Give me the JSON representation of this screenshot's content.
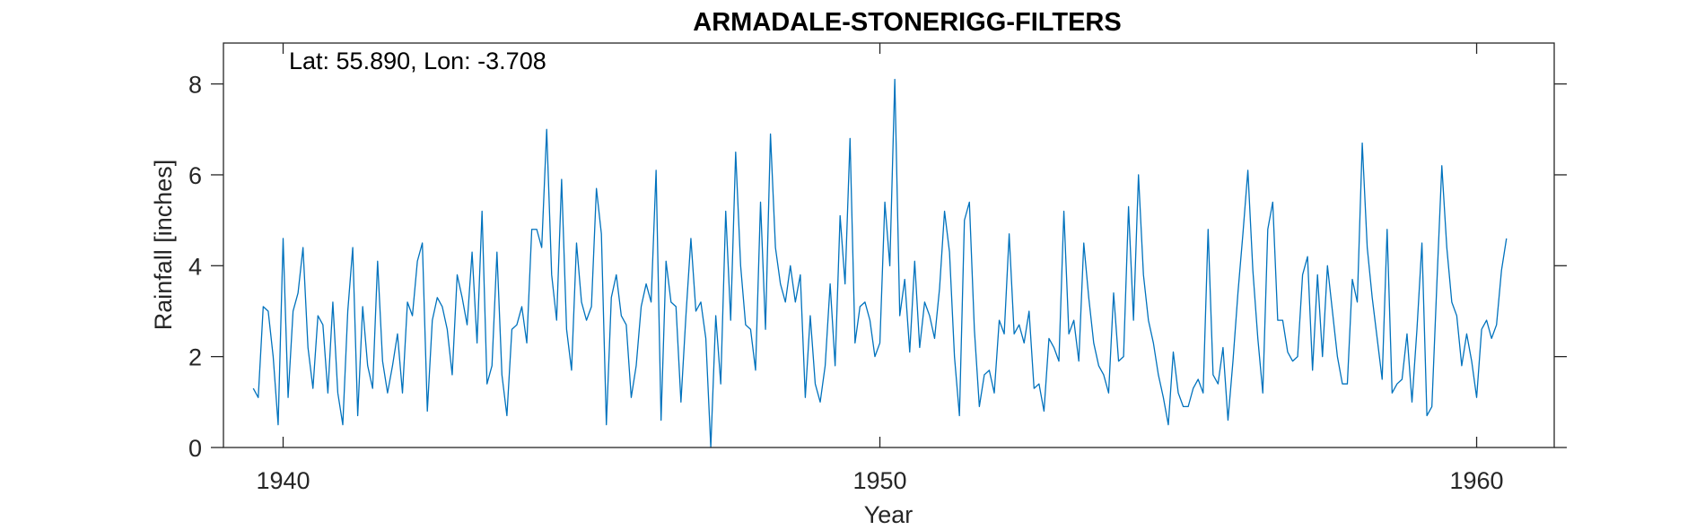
{
  "chart_data": {
    "type": "line",
    "title": "ARMADALE-STONERIGG-FILTERS",
    "annotation": "Lat: 55.890, Lon: -3.708",
    "xlabel": "Year",
    "ylabel": "Rainfall [inches]",
    "xlim": [
      1939,
      1961.3
    ],
    "ylim": [
      0,
      8.9
    ],
    "xticks": [
      1940,
      1950,
      1960
    ],
    "yticks": [
      0,
      2,
      4,
      6,
      8
    ],
    "xtick_labels": [
      "1940",
      "1950",
      "1960"
    ],
    "ytick_labels": [
      "0",
      "2",
      "4",
      "6",
      "8"
    ],
    "grid": false,
    "color": "#0072BD",
    "series": [
      {
        "start_year": 1939.5,
        "step_months": 1,
        "values": [
          1.3,
          1.1,
          3.1,
          3.0,
          2.0,
          0.5,
          4.6,
          1.1,
          3.0,
          3.4,
          4.4,
          2.2,
          1.3,
          2.9,
          2.7,
          1.2,
          3.2,
          1.2,
          0.5,
          3.0,
          4.4,
          0.7,
          3.1,
          1.8,
          1.3,
          4.1,
          1.9,
          1.2,
          1.8,
          2.5,
          1.2,
          3.2,
          2.9,
          4.1,
          4.5,
          0.8,
          2.8,
          3.3,
          3.1,
          2.6,
          1.6,
          3.8,
          3.3,
          2.7,
          4.3,
          2.3,
          5.2,
          1.4,
          1.8,
          4.3,
          1.6,
          0.7,
          2.6,
          2.7,
          3.1,
          2.3,
          4.8,
          4.8,
          4.4,
          7.0,
          3.8,
          2.8,
          5.9,
          2.6,
          1.7,
          4.5,
          3.2,
          2.8,
          3.1,
          5.7,
          4.7,
          0.5,
          3.3,
          3.8,
          2.9,
          2.7,
          1.1,
          1.8,
          3.1,
          3.6,
          3.2,
          6.1,
          0.6,
          4.1,
          3.2,
          3.1,
          1.0,
          2.9,
          4.6,
          3.0,
          3.2,
          2.4,
          0.0,
          2.9,
          1.4,
          5.2,
          2.8,
          6.5,
          4.0,
          2.7,
          2.6,
          1.7,
          5.4,
          2.6,
          6.9,
          4.4,
          3.6,
          3.2,
          4.0,
          3.2,
          3.8,
          1.1,
          2.9,
          1.4,
          1.0,
          1.8,
          3.6,
          1.8,
          5.1,
          3.6,
          6.8,
          2.3,
          3.1,
          3.2,
          2.8,
          2.0,
          2.3,
          5.4,
          4.0,
          8.1,
          2.9,
          3.7,
          2.1,
          4.1,
          2.2,
          3.2,
          2.9,
          2.4,
          3.5,
          5.2,
          4.3,
          2.0,
          0.7,
          5.0,
          5.4,
          2.6,
          0.9,
          1.6,
          1.7,
          1.2,
          2.8,
          2.5,
          4.7,
          2.5,
          2.7,
          2.3,
          3.0,
          1.3,
          1.4,
          0.8,
          2.4,
          2.2,
          1.9,
          5.2,
          2.5,
          2.8,
          1.9,
          4.5,
          3.3,
          2.3,
          1.8,
          1.6,
          1.2,
          3.4,
          1.9,
          2.0,
          5.3,
          2.8,
          6.0,
          3.8,
          2.8,
          2.3,
          1.6,
          1.1,
          0.5,
          2.1,
          1.2,
          0.9,
          0.9,
          1.3,
          1.5,
          1.2,
          4.8,
          1.6,
          1.4,
          2.2,
          0.6,
          1.9,
          3.4,
          4.7,
          6.1,
          3.9,
          2.4,
          1.2,
          4.8,
          5.4,
          2.8,
          2.8,
          2.1,
          1.9,
          2.0,
          3.8,
          4.2,
          1.7,
          3.8,
          2.0,
          4.0,
          3.0,
          2.0,
          1.4,
          1.4,
          3.7,
          3.2,
          6.7,
          4.4,
          3.3,
          2.4,
          1.5,
          4.8,
          1.2,
          1.4,
          1.5,
          2.5,
          1.0,
          2.6,
          4.5,
          0.7,
          0.9,
          3.6,
          6.2,
          4.4,
          3.2,
          2.9,
          1.8,
          2.5,
          1.9,
          1.1,
          2.6,
          2.8,
          2.4,
          2.7,
          3.9,
          4.6
        ]
      }
    ]
  }
}
